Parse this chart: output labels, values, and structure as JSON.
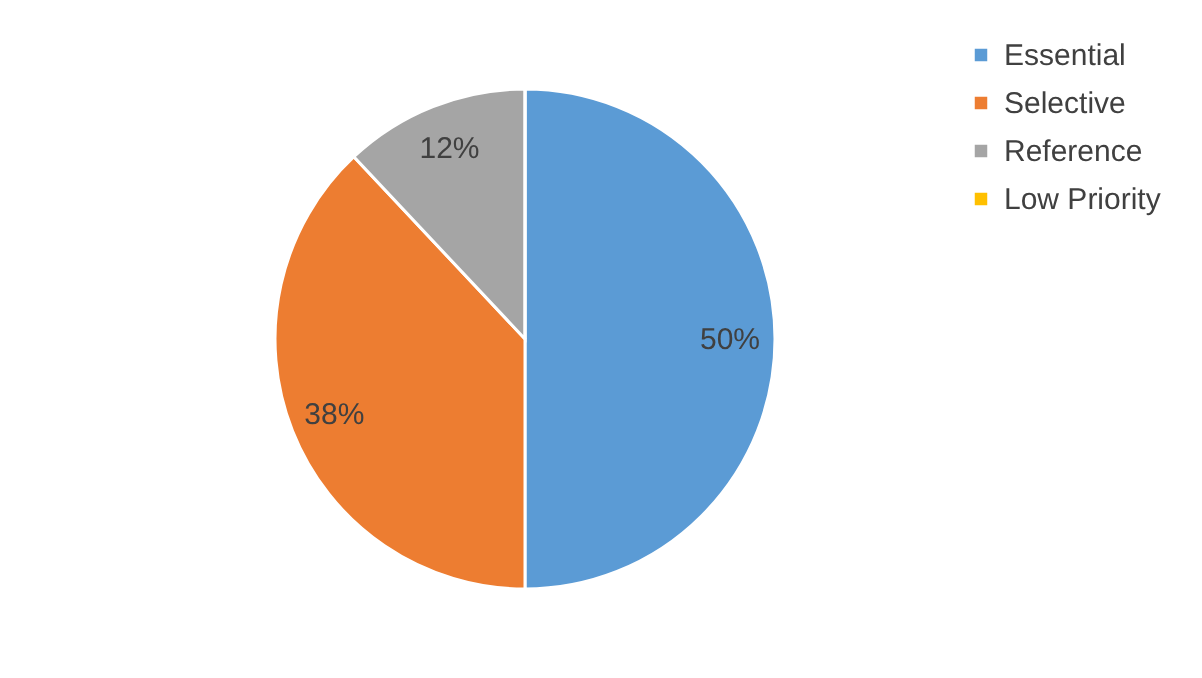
{
  "chart_data": {
    "type": "pie",
    "categories": [
      "Essential",
      "Selective",
      "Reference",
      "Low Priority"
    ],
    "values": [
      50,
      38,
      12,
      0
    ],
    "colors": [
      "#5b9bd5",
      "#ed7d31",
      "#a5a5a5",
      "#ffc000"
    ],
    "value_labels": [
      "50%",
      "38%",
      "12%",
      null
    ],
    "legend": "right"
  }
}
